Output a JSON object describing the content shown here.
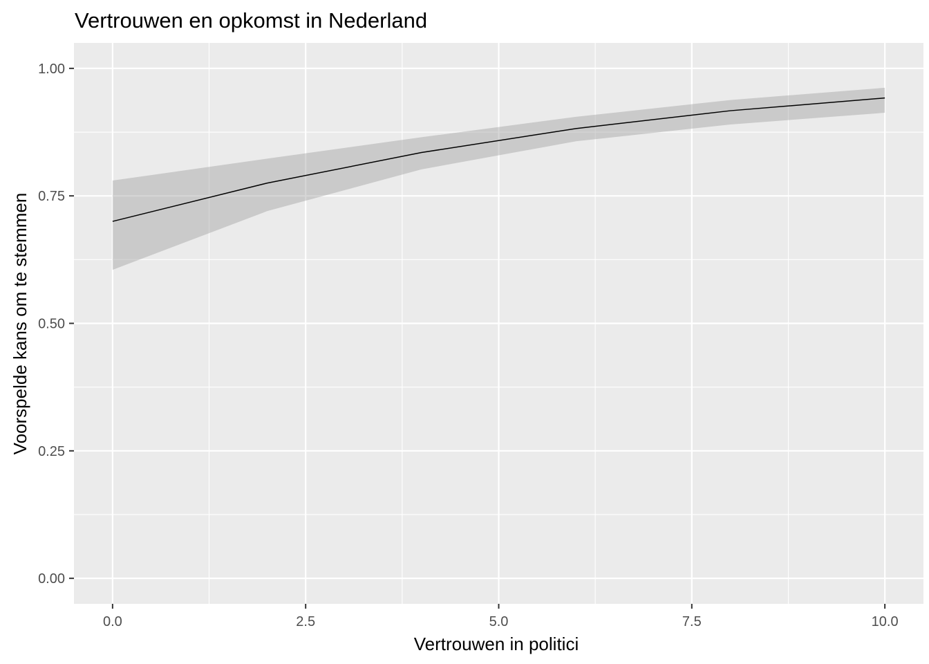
{
  "chart_data": {
    "type": "line",
    "title": "Vertrouwen en opkomst in Nederland",
    "xlabel": "Vertrouwen in politici",
    "ylabel": "Voorspelde kans om te stemmen",
    "xlim": [
      -0.5,
      10.5
    ],
    "ylim": [
      -0.05,
      1.05
    ],
    "x_ticks": [
      0,
      2.5,
      5,
      7.5,
      10
    ],
    "x_tick_labels": [
      "0.0",
      "2.5",
      "5.0",
      "7.5",
      "10.0"
    ],
    "y_ticks": [
      0,
      0.25,
      0.5,
      0.75,
      1
    ],
    "y_tick_labels": [
      "0.00",
      "0.25",
      "0.50",
      "0.75",
      "1.00"
    ],
    "grid": true,
    "series": [
      {
        "x": [
          0,
          2,
          4,
          6,
          8,
          10
        ],
        "y": [
          0.7,
          0.775,
          0.835,
          0.882,
          0.917,
          0.942
        ],
        "lower": [
          0.605,
          0.72,
          0.802,
          0.857,
          0.89,
          0.913
        ],
        "upper": [
          0.78,
          0.823,
          0.865,
          0.905,
          0.938,
          0.962
        ]
      }
    ],
    "colors": {
      "panel": "#ebebeb",
      "grid": "#ffffff",
      "ribbon": "#999999",
      "line": "#000000"
    }
  }
}
